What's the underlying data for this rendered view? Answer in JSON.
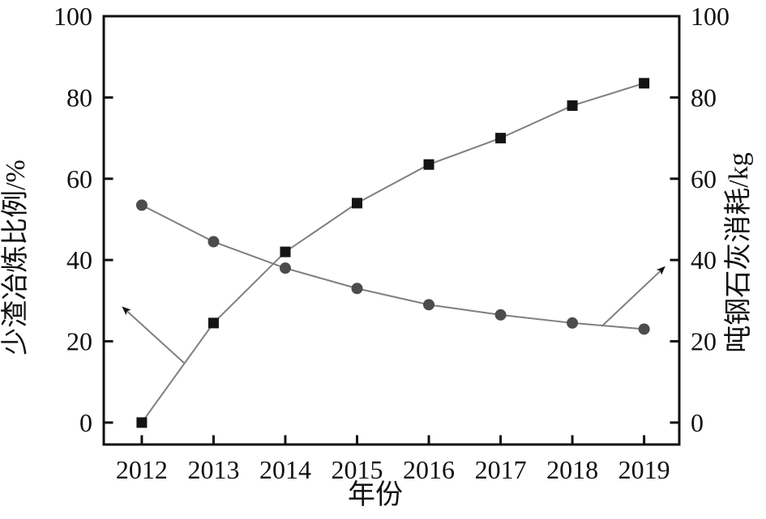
{
  "chart_data": {
    "type": "line",
    "title": "",
    "xlabel": "年份",
    "ylabel_left": "少渣冶炼比例/%",
    "ylabel_right": "吨钢石灰消耗/kg",
    "x": [
      2012,
      2013,
      2014,
      2015,
      2016,
      2017,
      2018,
      2019
    ],
    "series": [
      {
        "name": "少渣冶炼比例",
        "axis": "left",
        "marker": "square",
        "values": [
          0,
          24.5,
          42,
          54,
          63.5,
          70,
          78,
          83.5
        ]
      },
      {
        "name": "吨钢石灰消耗",
        "axis": "right",
        "marker": "circle",
        "values": [
          53.5,
          44.5,
          38,
          33,
          29,
          26.5,
          24.5,
          23
        ]
      }
    ],
    "yticks": [
      0,
      20,
      40,
      60,
      80,
      100
    ],
    "ylim": [
      -5.4,
      100
    ],
    "xlim": [
      2011.47,
      2019.49
    ],
    "grid": false,
    "legend": "none",
    "annotations": [
      {
        "name": "arrow-to-left-axis",
        "series": "少渣冶炼比例",
        "from": {
          "x": 2012.6,
          "y": 14.5
        },
        "to": {
          "x": 2011.74,
          "y": 28.3
        }
      },
      {
        "name": "arrow-to-right-axis",
        "series": "吨钢石灰消耗",
        "from": {
          "x": 2018.41,
          "y": 23.7
        },
        "to": {
          "x": 2019.28,
          "y": 38.2
        }
      }
    ],
    "colors": {
      "frame": "#111111",
      "line": "#7f7f7f",
      "square_marker": "#141414",
      "circle_marker": "#4c4c4c",
      "background": "#ffffff",
      "arrowhead": "#111111"
    }
  }
}
